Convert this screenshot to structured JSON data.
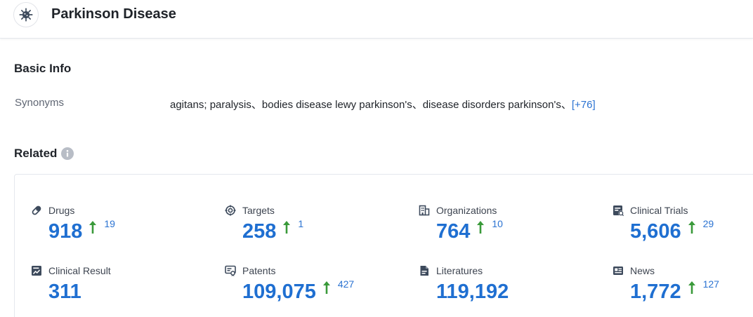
{
  "header": {
    "title": "Parkinson Disease"
  },
  "basic_info": {
    "title": "Basic Info",
    "synonyms_label": "Synonyms",
    "synonyms_value": "agitans; paralysis、bodies disease lewy parkinson's、disease disorders parkinson's、",
    "synonyms_more": "[+76]"
  },
  "related": {
    "title": "Related",
    "items": [
      {
        "label": "Drugs",
        "value": "918",
        "delta": "19",
        "icon": "pill-icon"
      },
      {
        "label": "Targets",
        "value": "258",
        "delta": "1",
        "icon": "target-icon"
      },
      {
        "label": "Organizations",
        "value": "764",
        "delta": "10",
        "icon": "building-icon"
      },
      {
        "label": "Clinical Trials",
        "value": "5,606",
        "delta": "29",
        "icon": "clinical-trial-icon"
      },
      {
        "label": "Clinical Result",
        "value": "311",
        "delta": "",
        "icon": "chart-report-icon"
      },
      {
        "label": "Patents",
        "value": "109,075",
        "delta": "427",
        "icon": "patent-icon"
      },
      {
        "label": "Literatures",
        "value": "119,192",
        "delta": "",
        "icon": "document-icon"
      },
      {
        "label": "News",
        "value": "1,772",
        "delta": "127",
        "icon": "newspaper-icon"
      }
    ]
  },
  "colors": {
    "accent": "#1f6fd1",
    "link": "#2b73d2",
    "up_arrow": "#3a9a3a",
    "muted_label": "#5f6673"
  }
}
